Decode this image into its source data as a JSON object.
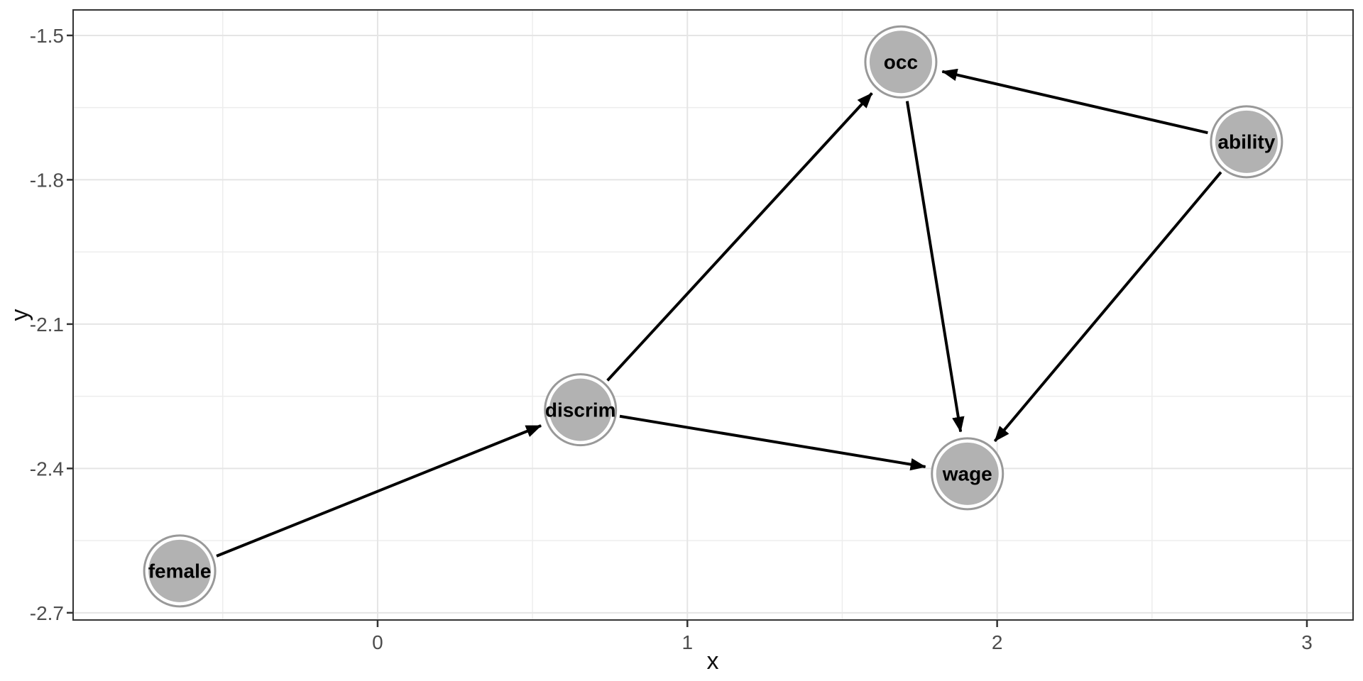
{
  "figure": {
    "background": "#ffffff"
  },
  "chart_data": {
    "type": "scatter",
    "subtype": "directed-acyclic-graph",
    "title": "",
    "xlabel": "x",
    "ylabel": "y",
    "xlim": [
      -0.983,
      3.149
    ],
    "ylim": [
      -2.715,
      -1.447
    ],
    "x_major_ticks": [
      0,
      1,
      2,
      3
    ],
    "x_tick_labels": [
      "0",
      "1",
      "2",
      "3"
    ],
    "y_major_ticks": [
      -1.5,
      -1.8,
      -2.1,
      -2.4,
      -2.7
    ],
    "y_tick_labels": [
      "-1.5",
      "-1.8",
      "-2.1",
      "-2.4",
      "-2.7"
    ],
    "x_minor_ticks": [
      -0.5,
      0.5,
      1.5,
      2.5
    ],
    "y_minor_ticks": [
      -1.65,
      -1.95,
      -2.25,
      -2.55
    ],
    "grid": true,
    "legend": false,
    "nodes": [
      {
        "id": "female",
        "label": "female",
        "x": -0.639,
        "y": -2.613
      },
      {
        "id": "discrim",
        "label": "discrim",
        "x": 0.655,
        "y": -2.278
      },
      {
        "id": "occ",
        "label": "occ",
        "x": 1.689,
        "y": -1.555
      },
      {
        "id": "wage",
        "label": "wage",
        "x": 1.904,
        "y": -2.411
      },
      {
        "id": "ability",
        "label": "ability",
        "x": 2.805,
        "y": -1.721
      }
    ],
    "edges": [
      {
        "from": "female",
        "to": "discrim"
      },
      {
        "from": "discrim",
        "to": "occ"
      },
      {
        "from": "discrim",
        "to": "wage"
      },
      {
        "from": "occ",
        "to": "wage"
      },
      {
        "from": "ability",
        "to": "occ"
      },
      {
        "from": "ability",
        "to": "wage"
      }
    ],
    "colors": {
      "panel_background": "#ffffff",
      "panel_border": "#333333",
      "grid_major": "#e5e5e5",
      "grid_minor": "#ededed",
      "tick_mark": "#333333",
      "axis_text": "#4d4d4d",
      "axis_title": "#111111",
      "edge": "#000000",
      "node_fill": "#b2b2b2",
      "node_ring_outer": "#999999",
      "node_ring_inner": "#ffffff",
      "node_label": "#000000"
    }
  }
}
